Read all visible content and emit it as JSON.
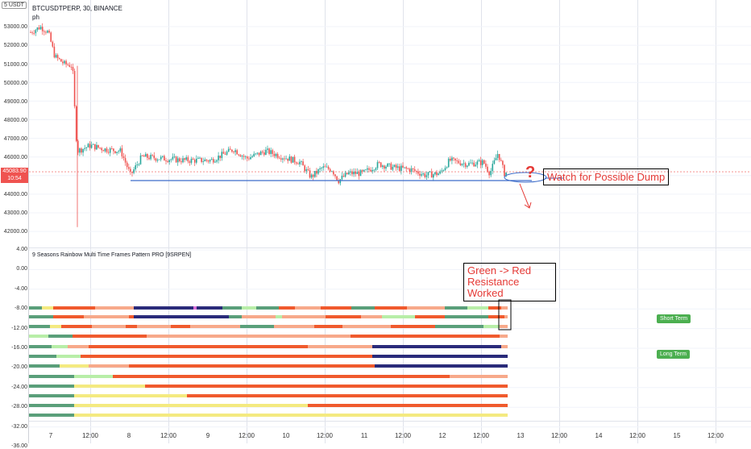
{
  "header": {
    "currency": "USDT",
    "corner_number": "5",
    "symbol_line": "BTCUSDTPERP, 30, BINANCE",
    "indicator_short": "ph",
    "indicator_title": "9 Seasons Rainbow Multi Time Frames Pattern PRO [9SRPEN]"
  },
  "price_axis": {
    "labels": [
      "53000.00",
      "52000.00",
      "51000.00",
      "50000.00",
      "49000.00",
      "48000.00",
      "47000.00",
      "46000.00",
      "45000.00",
      "44000.00",
      "43000.00",
      "42000.00"
    ],
    "current_price": "45083.90",
    "countdown": "10:54"
  },
  "indicator_axis": {
    "labels": [
      "4.00",
      "0.00",
      "-4.00",
      "-8.00",
      "-12.00",
      "-16.00",
      "-20.00",
      "-24.00",
      "-28.00",
      "-32.00",
      "-36.00"
    ]
  },
  "time_axis": {
    "labels": [
      "7",
      "12:00",
      "8",
      "12:00",
      "9",
      "12:00",
      "10",
      "12:00",
      "11",
      "12:00",
      "12",
      "12:00",
      "13",
      "12:00",
      "14",
      "12:00",
      "15",
      "12:00"
    ]
  },
  "annotations": {
    "watch_text": "Watch for Possible Dump",
    "question_mark": "?",
    "signal_line1": "Green -> Red",
    "signal_line2": "Resistance Worked",
    "short_term": "Short Term",
    "long_term": "Long Term"
  },
  "colors": {
    "bull": "#26a69a",
    "bear": "#ef5350",
    "support_line": "#3d6cc9",
    "annotation_red": "#e53935",
    "rainbow_red": "#f05a2d",
    "rainbow_salmon": "#f7a98a",
    "rainbow_navy": "#2a2b7a",
    "rainbow_green": "#5a9f7a",
    "rainbow_lightgreen": "#b8eea8",
    "rainbow_yellow": "#f4ea80"
  },
  "chart_data": {
    "type": "candlestick",
    "title": "BTCUSDTPERP, 30, BINANCE",
    "ylim": [
      41500,
      53500
    ],
    "series": [
      {
        "name": "price",
        "x": [
          "7",
          "7 12:00",
          "8",
          "8 12:00",
          "9",
          "9 12:00",
          "10",
          "10 12:00",
          "11",
          "11 12:00",
          "12",
          "12 12:00"
        ],
        "values": [
          52600,
          51100,
          44900,
          45900,
          46000,
          46400,
          45900,
          44500,
          45200,
          45200,
          45800,
          45000
        ]
      }
    ],
    "support_level": 44600
  }
}
